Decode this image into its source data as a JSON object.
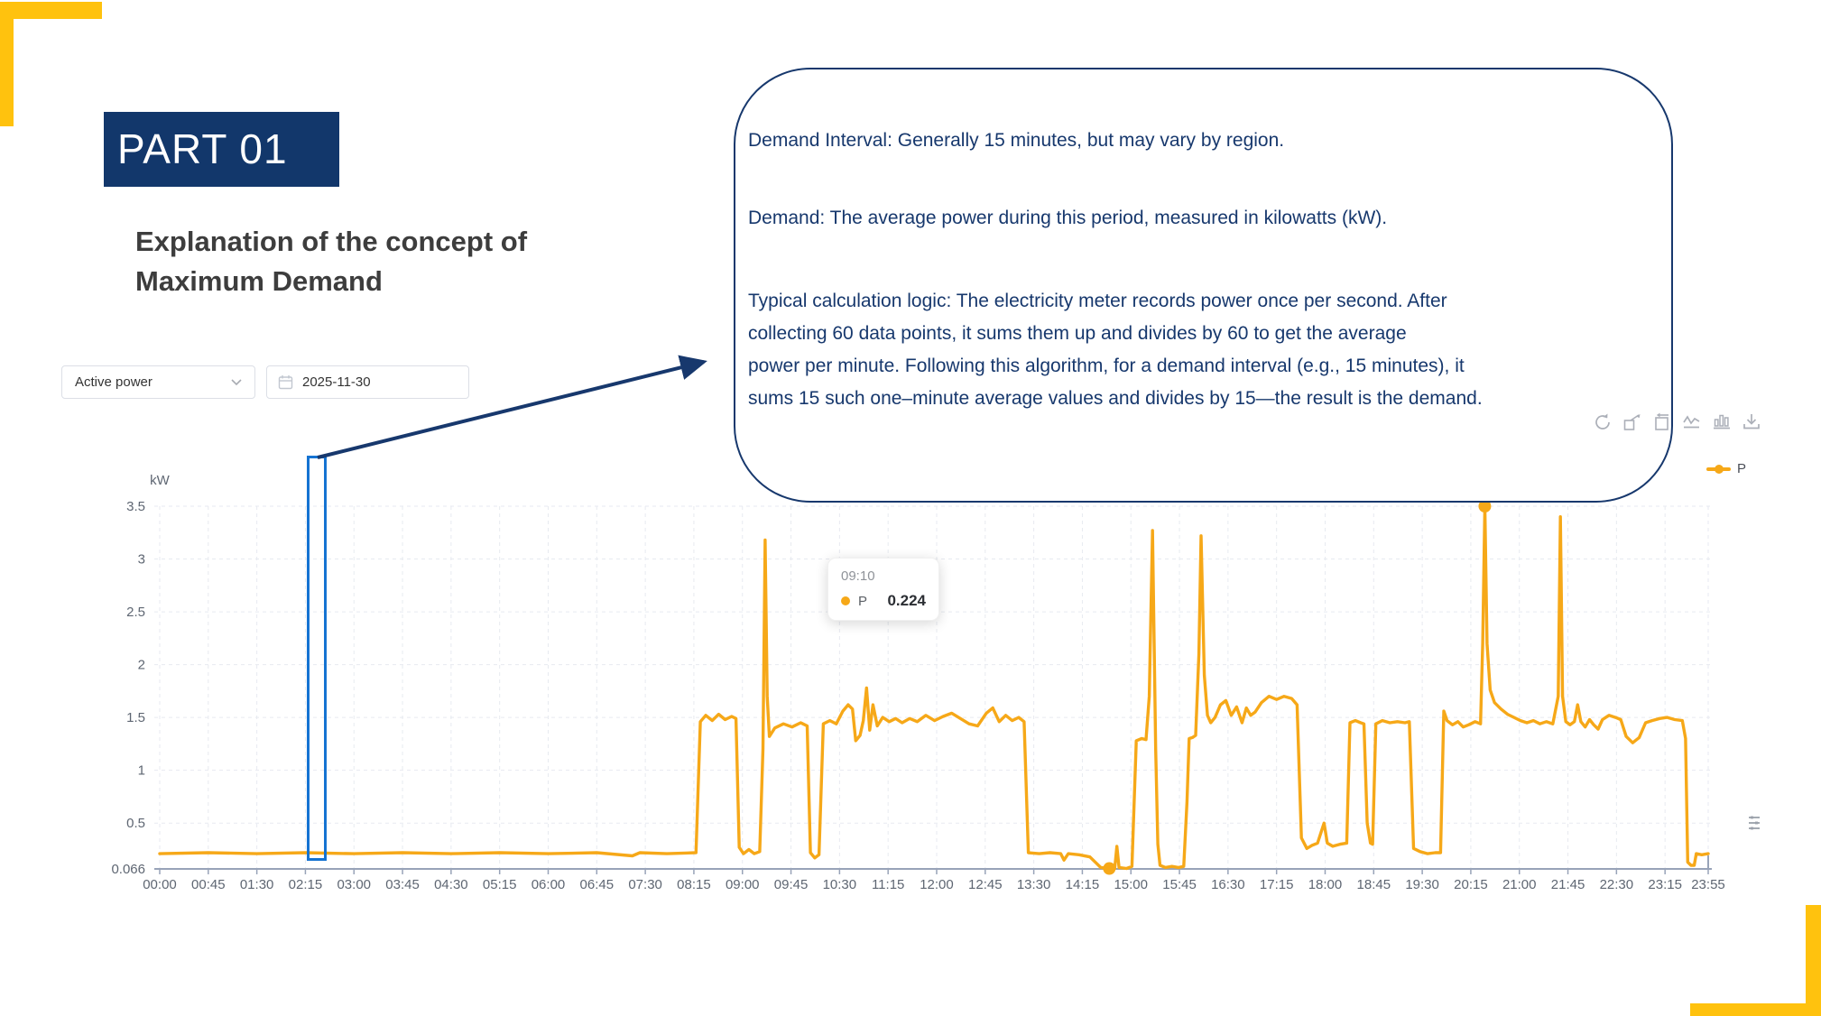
{
  "slide": {
    "part_label": "PART 01",
    "heading_lines": [
      "Explanation of the concept of",
      "Maximum Demand"
    ]
  },
  "controls": {
    "metric_select": {
      "value": "Active power"
    },
    "date_picker": {
      "value": "2025-11-30"
    }
  },
  "callout": {
    "paragraphs": [
      [
        "Demand Interval: Generally 15 minutes, but may vary by region."
      ],
      [
        "Demand: The average power during this period, measured in kilowatts (kW)."
      ],
      [
        "Typical calculation logic: The electricity meter records power once per second. After",
        "collecting 60 data points, it sums them up and divides by 60 to get the average",
        "power per minute. Following this algorithm, for a demand interval (e.g., 15 minutes), it",
        "sums 15 such one–minute average values and divides by 15—the result is the demand."
      ]
    ]
  },
  "tooltip": {
    "time": "09:10",
    "series": "P",
    "value": "0.224"
  },
  "legend": {
    "label": "P"
  },
  "toolbar_icons": [
    "refresh-icon",
    "data-zoom-icon",
    "restore-icon",
    "line-chart-icon",
    "bar-chart-icon",
    "download-icon"
  ],
  "chart_data": {
    "type": "line",
    "title": "",
    "xlabel": "",
    "ylabel": "kW",
    "y_axis_name": "kW",
    "ylim": [
      0.066,
      3.5
    ],
    "y_ticks": [
      0.066,
      0.5,
      1,
      1.5,
      2,
      2.5,
      3,
      3.5
    ],
    "x_ticks": [
      "00:00",
      "00:45",
      "01:30",
      "02:15",
      "03:00",
      "03:45",
      "04:30",
      "05:15",
      "06:00",
      "06:45",
      "07:30",
      "08:15",
      "09:00",
      "09:45",
      "10:30",
      "11:15",
      "12:00",
      "12:45",
      "13:30",
      "14:15",
      "15:00",
      "15:45",
      "16:30",
      "17:15",
      "18:00",
      "18:45",
      "19:30",
      "20:15",
      "21:00",
      "21:45",
      "22:30",
      "23:15",
      "23:55"
    ],
    "grid": true,
    "legend_position": "top-right",
    "line_color": "#F6A818",
    "series": [
      {
        "name": "P",
        "points_minutes_kw": [
          [
            0,
            0.21
          ],
          [
            45,
            0.22
          ],
          [
            90,
            0.21
          ],
          [
            135,
            0.22
          ],
          [
            180,
            0.21
          ],
          [
            225,
            0.22
          ],
          [
            270,
            0.21
          ],
          [
            315,
            0.22
          ],
          [
            360,
            0.21
          ],
          [
            405,
            0.22
          ],
          [
            438,
            0.19
          ],
          [
            445,
            0.22
          ],
          [
            470,
            0.21
          ],
          [
            497,
            0.22
          ],
          [
            501,
            1.46
          ],
          [
            506,
            1.52
          ],
          [
            512,
            1.47
          ],
          [
            518,
            1.53
          ],
          [
            524,
            1.48
          ],
          [
            530,
            1.51
          ],
          [
            534,
            1.49
          ],
          [
            537,
            0.27
          ],
          [
            541,
            0.21
          ],
          [
            546,
            0.25
          ],
          [
            551,
            0.21
          ],
          [
            556,
            0.23
          ],
          [
            559,
            1.2
          ],
          [
            561,
            3.18
          ],
          [
            563,
            1.7
          ],
          [
            565,
            1.32
          ],
          [
            570,
            1.4
          ],
          [
            578,
            1.44
          ],
          [
            586,
            1.41
          ],
          [
            594,
            1.45
          ],
          [
            600,
            1.42
          ],
          [
            603,
            0.22
          ],
          [
            607,
            0.17
          ],
          [
            611,
            0.2
          ],
          [
            615,
            1.44
          ],
          [
            621,
            1.47
          ],
          [
            627,
            1.44
          ],
          [
            633,
            1.56
          ],
          [
            638,
            1.62
          ],
          [
            642,
            1.58
          ],
          [
            645,
            1.28
          ],
          [
            649,
            1.33
          ],
          [
            652,
            1.47
          ],
          [
            655,
            1.78
          ],
          [
            658,
            1.38
          ],
          [
            661,
            1.62
          ],
          [
            665,
            1.42
          ],
          [
            670,
            1.5
          ],
          [
            676,
            1.46
          ],
          [
            682,
            1.49
          ],
          [
            688,
            1.45
          ],
          [
            695,
            1.49
          ],
          [
            702,
            1.46
          ],
          [
            710,
            1.52
          ],
          [
            718,
            1.47
          ],
          [
            726,
            1.51
          ],
          [
            734,
            1.54
          ],
          [
            742,
            1.49
          ],
          [
            750,
            1.44
          ],
          [
            758,
            1.42
          ],
          [
            766,
            1.54
          ],
          [
            772,
            1.59
          ],
          [
            778,
            1.46
          ],
          [
            784,
            1.52
          ],
          [
            790,
            1.47
          ],
          [
            796,
            1.5
          ],
          [
            801,
            1.46
          ],
          [
            805,
            0.22
          ],
          [
            815,
            0.21
          ],
          [
            825,
            0.22
          ],
          [
            835,
            0.21
          ],
          [
            838,
            0.15
          ],
          [
            842,
            0.21
          ],
          [
            852,
            0.2
          ],
          [
            862,
            0.18
          ],
          [
            868,
            0.12
          ],
          [
            872,
            0.08
          ],
          [
            880,
            0.07
          ],
          [
            885,
            0.07
          ],
          [
            887,
            0.28
          ],
          [
            889,
            0.08
          ],
          [
            896,
            0.07
          ],
          [
            901,
            0.09
          ],
          [
            905,
            1.28
          ],
          [
            910,
            1.3
          ],
          [
            914,
            1.29
          ],
          [
            917,
            1.7
          ],
          [
            920,
            3.27
          ],
          [
            923,
            1.2
          ],
          [
            925,
            0.3
          ],
          [
            927,
            0.1
          ],
          [
            932,
            0.08
          ],
          [
            938,
            0.09
          ],
          [
            944,
            0.08
          ],
          [
            949,
            0.09
          ],
          [
            952,
            0.7
          ],
          [
            954,
            1.3
          ],
          [
            957,
            1.31
          ],
          [
            960,
            1.33
          ],
          [
            963,
            2.1
          ],
          [
            965,
            3.22
          ],
          [
            968,
            1.9
          ],
          [
            971,
            1.52
          ],
          [
            974,
            1.45
          ],
          [
            978,
            1.5
          ],
          [
            983,
            1.62
          ],
          [
            988,
            1.66
          ],
          [
            993,
            1.52
          ],
          [
            998,
            1.6
          ],
          [
            1003,
            1.45
          ],
          [
            1007,
            1.59
          ],
          [
            1011,
            1.52
          ],
          [
            1015,
            1.55
          ],
          [
            1021,
            1.64
          ],
          [
            1028,
            1.7
          ],
          [
            1035,
            1.67
          ],
          [
            1042,
            1.7
          ],
          [
            1049,
            1.68
          ],
          [
            1054,
            1.62
          ],
          [
            1058,
            0.36
          ],
          [
            1063,
            0.26
          ],
          [
            1068,
            0.29
          ],
          [
            1073,
            0.31
          ],
          [
            1079,
            0.5
          ],
          [
            1082,
            0.31
          ],
          [
            1087,
            0.28
          ],
          [
            1094,
            0.3
          ],
          [
            1100,
            0.31
          ],
          [
            1103,
            1.45
          ],
          [
            1108,
            1.47
          ],
          [
            1113,
            1.45
          ],
          [
            1116,
            1.44
          ],
          [
            1119,
            0.5
          ],
          [
            1122,
            0.31
          ],
          [
            1124,
            0.3
          ],
          [
            1127,
            1.44
          ],
          [
            1133,
            1.47
          ],
          [
            1140,
            1.45
          ],
          [
            1147,
            1.46
          ],
          [
            1154,
            1.45
          ],
          [
            1158,
            1.46
          ],
          [
            1162,
            0.26
          ],
          [
            1168,
            0.23
          ],
          [
            1175,
            0.21
          ],
          [
            1182,
            0.22
          ],
          [
            1187,
            0.22
          ],
          [
            1190,
            1.56
          ],
          [
            1193,
            1.47
          ],
          [
            1198,
            1.43
          ],
          [
            1203,
            1.46
          ],
          [
            1208,
            1.41
          ],
          [
            1213,
            1.43
          ],
          [
            1219,
            1.46
          ],
          [
            1224,
            1.44
          ],
          [
            1226,
            2.2
          ],
          [
            1228,
            3.5
          ],
          [
            1230,
            2.2
          ],
          [
            1233,
            1.76
          ],
          [
            1237,
            1.64
          ],
          [
            1243,
            1.58
          ],
          [
            1249,
            1.53
          ],
          [
            1255,
            1.5
          ],
          [
            1261,
            1.47
          ],
          [
            1267,
            1.45
          ],
          [
            1273,
            1.47
          ],
          [
            1279,
            1.44
          ],
          [
            1285,
            1.46
          ],
          [
            1291,
            1.44
          ],
          [
            1296,
            1.7
          ],
          [
            1298,
            3.4
          ],
          [
            1300,
            1.7
          ],
          [
            1303,
            1.46
          ],
          [
            1307,
            1.43
          ],
          [
            1311,
            1.46
          ],
          [
            1314,
            1.62
          ],
          [
            1317,
            1.46
          ],
          [
            1321,
            1.41
          ],
          [
            1325,
            1.48
          ],
          [
            1329,
            1.43
          ],
          [
            1333,
            1.39
          ],
          [
            1337,
            1.48
          ],
          [
            1343,
            1.52
          ],
          [
            1349,
            1.5
          ],
          [
            1354,
            1.48
          ],
          [
            1359,
            1.32
          ],
          [
            1365,
            1.26
          ],
          [
            1371,
            1.31
          ],
          [
            1377,
            1.45
          ],
          [
            1383,
            1.47
          ],
          [
            1390,
            1.49
          ],
          [
            1397,
            1.5
          ],
          [
            1404,
            1.48
          ],
          [
            1411,
            1.47
          ],
          [
            1414,
            1.3
          ],
          [
            1416,
            0.13
          ],
          [
            1419,
            0.1
          ],
          [
            1422,
            0.1
          ],
          [
            1424,
            0.21
          ],
          [
            1429,
            0.2
          ],
          [
            1435,
            0.21
          ]
        ]
      }
    ],
    "marked_points": [
      {
        "time": "20:28",
        "value": 3.5
      },
      {
        "time": "14:40",
        "value": 0.07
      }
    ],
    "highlight_region": {
      "start": "02:16",
      "end": "02:35"
    }
  }
}
